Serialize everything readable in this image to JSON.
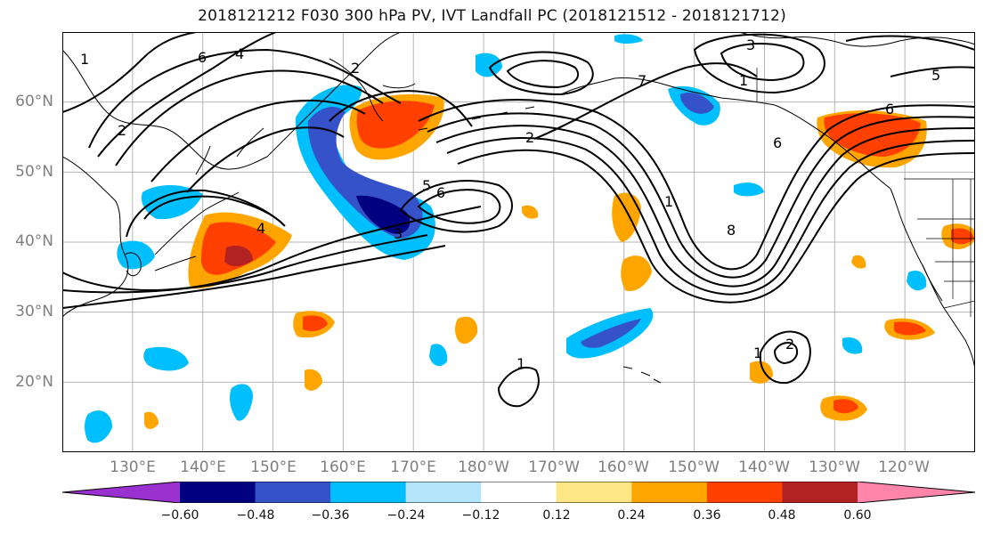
{
  "figure": {
    "title": "2018121212 F030 300 hPa PV, IVT Landfall PC (2018121512 - 2018121712)"
  },
  "map": {
    "projection": "PlateCarree",
    "extent": {
      "lon_min": 120,
      "lon_max": 250,
      "lat_min": 10,
      "lat_max": 70
    },
    "lat_ticks": [
      "60°N",
      "50°N",
      "40°N",
      "30°N",
      "20°N"
    ],
    "lat_values": [
      60,
      50,
      40,
      30,
      20
    ],
    "lon_ticks": [
      "130°E",
      "140°E",
      "150°E",
      "160°E",
      "170°E",
      "180°W",
      "170°W",
      "160°W",
      "150°W",
      "140°W",
      "130°W",
      "120°W"
    ],
    "lon_values": [
      130,
      140,
      150,
      160,
      170,
      180,
      190,
      200,
      210,
      220,
      230,
      240
    ],
    "gridlines": true,
    "features": [
      "coastline",
      "country-borders",
      "us-state-borders"
    ]
  },
  "colorbar": {
    "orientation": "horizontal",
    "extend": "both",
    "tick_labels": [
      "−0.60",
      "−0.48",
      "−0.36",
      "−0.24",
      "−0.12",
      "0.12",
      "0.24",
      "0.36",
      "0.48",
      "0.60"
    ],
    "levels": [
      -0.6,
      -0.48,
      -0.36,
      -0.24,
      -0.12,
      0.12,
      0.24,
      0.36,
      0.48,
      0.6
    ],
    "colors": [
      "#9b30d0",
      "#000080",
      "#3652c8",
      "#00bfff",
      "#b3e5fc",
      "#ffffff",
      "#ffe785",
      "#ffa500",
      "#ff4000",
      "#b22222",
      "#ff85ab"
    ]
  },
  "contours": {
    "field": "300 hPa PV",
    "labels": [
      "1",
      "2",
      "3",
      "4",
      "5",
      "6",
      "7",
      "8"
    ]
  }
}
